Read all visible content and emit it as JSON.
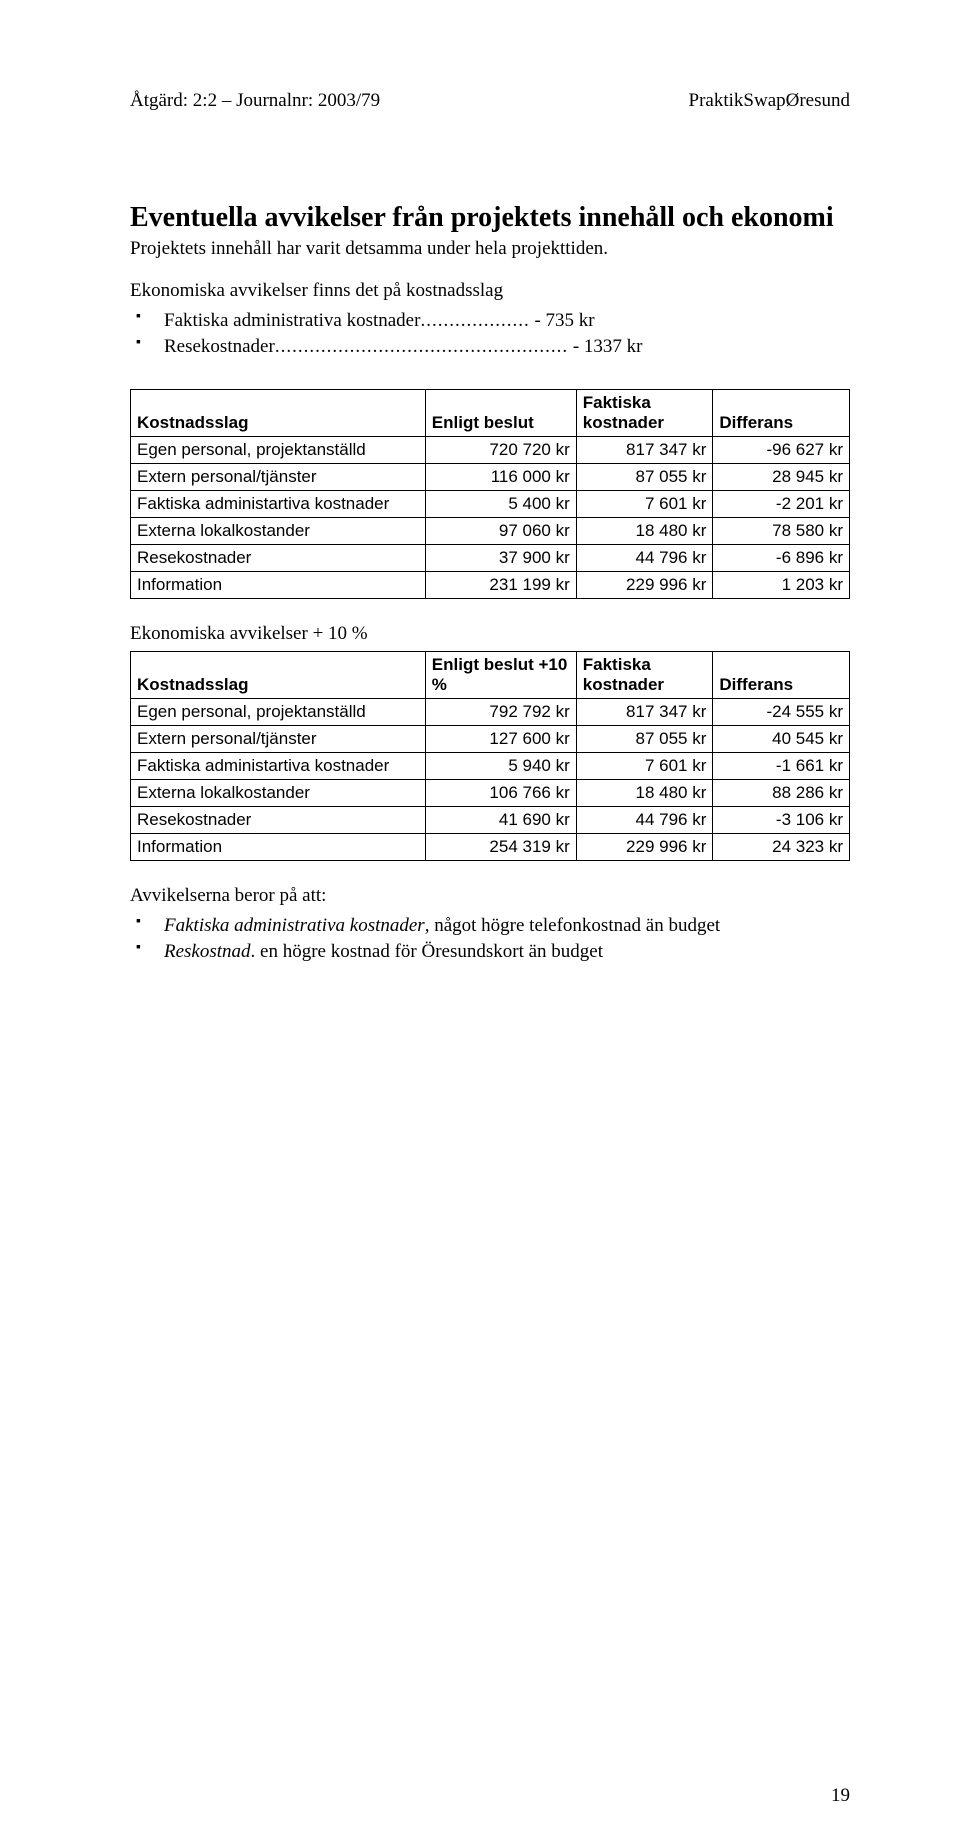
{
  "header": {
    "left": "Åtgärd: 2:2 – Journalnr: 2003/79",
    "right": "PraktikSwapØresund"
  },
  "title": "Eventuella avvikelser från projektets innehåll och ekonomi",
  "intro": "Projektets innehåll har varit detsamma under hela projekttiden.",
  "sub": "Ekonomiska avvikelser finns det på kostnadsslag",
  "bullets": [
    {
      "label": "Faktiska administrativa kostnader",
      "dots": "...................",
      "suffix": " - 735 kr"
    },
    {
      "label": "Resekostnader",
      "dots": "...................................................",
      "suffix": " - 1337 kr"
    }
  ],
  "table1": {
    "headers": [
      "Kostnadsslag",
      "Enligt beslut",
      "Faktiska kostnader",
      "Differans"
    ],
    "rows": [
      [
        "Egen personal, projektanställd",
        "720 720 kr",
        "817 347 kr",
        "-96 627 kr"
      ],
      [
        "Extern personal/tjänster",
        "116 000 kr",
        "87 055 kr",
        "28 945 kr"
      ],
      [
        "Faktiska administartiva kostnader",
        "5 400 kr",
        "7 601 kr",
        "-2 201 kr"
      ],
      [
        "Externa lokalkostander",
        "97 060 kr",
        "18 480 kr",
        "78 580 kr"
      ],
      [
        "Resekostnader",
        "37 900 kr",
        "44 796 kr",
        "-6 896 kr"
      ],
      [
        "Information",
        "231 199 kr",
        "229 996 kr",
        "1 203 kr"
      ]
    ]
  },
  "section2": "Ekonomiska avvikelser + 10 %",
  "table2": {
    "headers": [
      "Kostnadsslag",
      "Enligt beslut +10 %",
      "Faktiska kostnader",
      "Differans"
    ],
    "rows": [
      [
        "Egen personal, projektanställd",
        "792 792 kr",
        "817 347 kr",
        "-24 555 kr"
      ],
      [
        "Extern personal/tjänster",
        "127 600 kr",
        "87 055 kr",
        "40 545 kr"
      ],
      [
        "Faktiska administartiva kostnader",
        "5 940 kr",
        "7 601 kr",
        "-1 661 kr"
      ],
      [
        "Externa lokalkostander",
        "106 766 kr",
        "18 480 kr",
        "88 286 kr"
      ],
      [
        "Resekostnader",
        "41 690 kr",
        "44 796 kr",
        "-3 106 kr"
      ],
      [
        "Information",
        "254 319 kr",
        "229 996 kr",
        "24 323 kr"
      ]
    ]
  },
  "footer_title": "Avvikelserna beror på att:",
  "footer_items": [
    {
      "ital": "Faktiska administrativa kostnader",
      "rest": ", något högre telefonkostnad än budget"
    },
    {
      "ital": "Reskostnad",
      "rest": ". en högre kostnad för Öresundskort än budget"
    }
  ],
  "page_number": "19"
}
